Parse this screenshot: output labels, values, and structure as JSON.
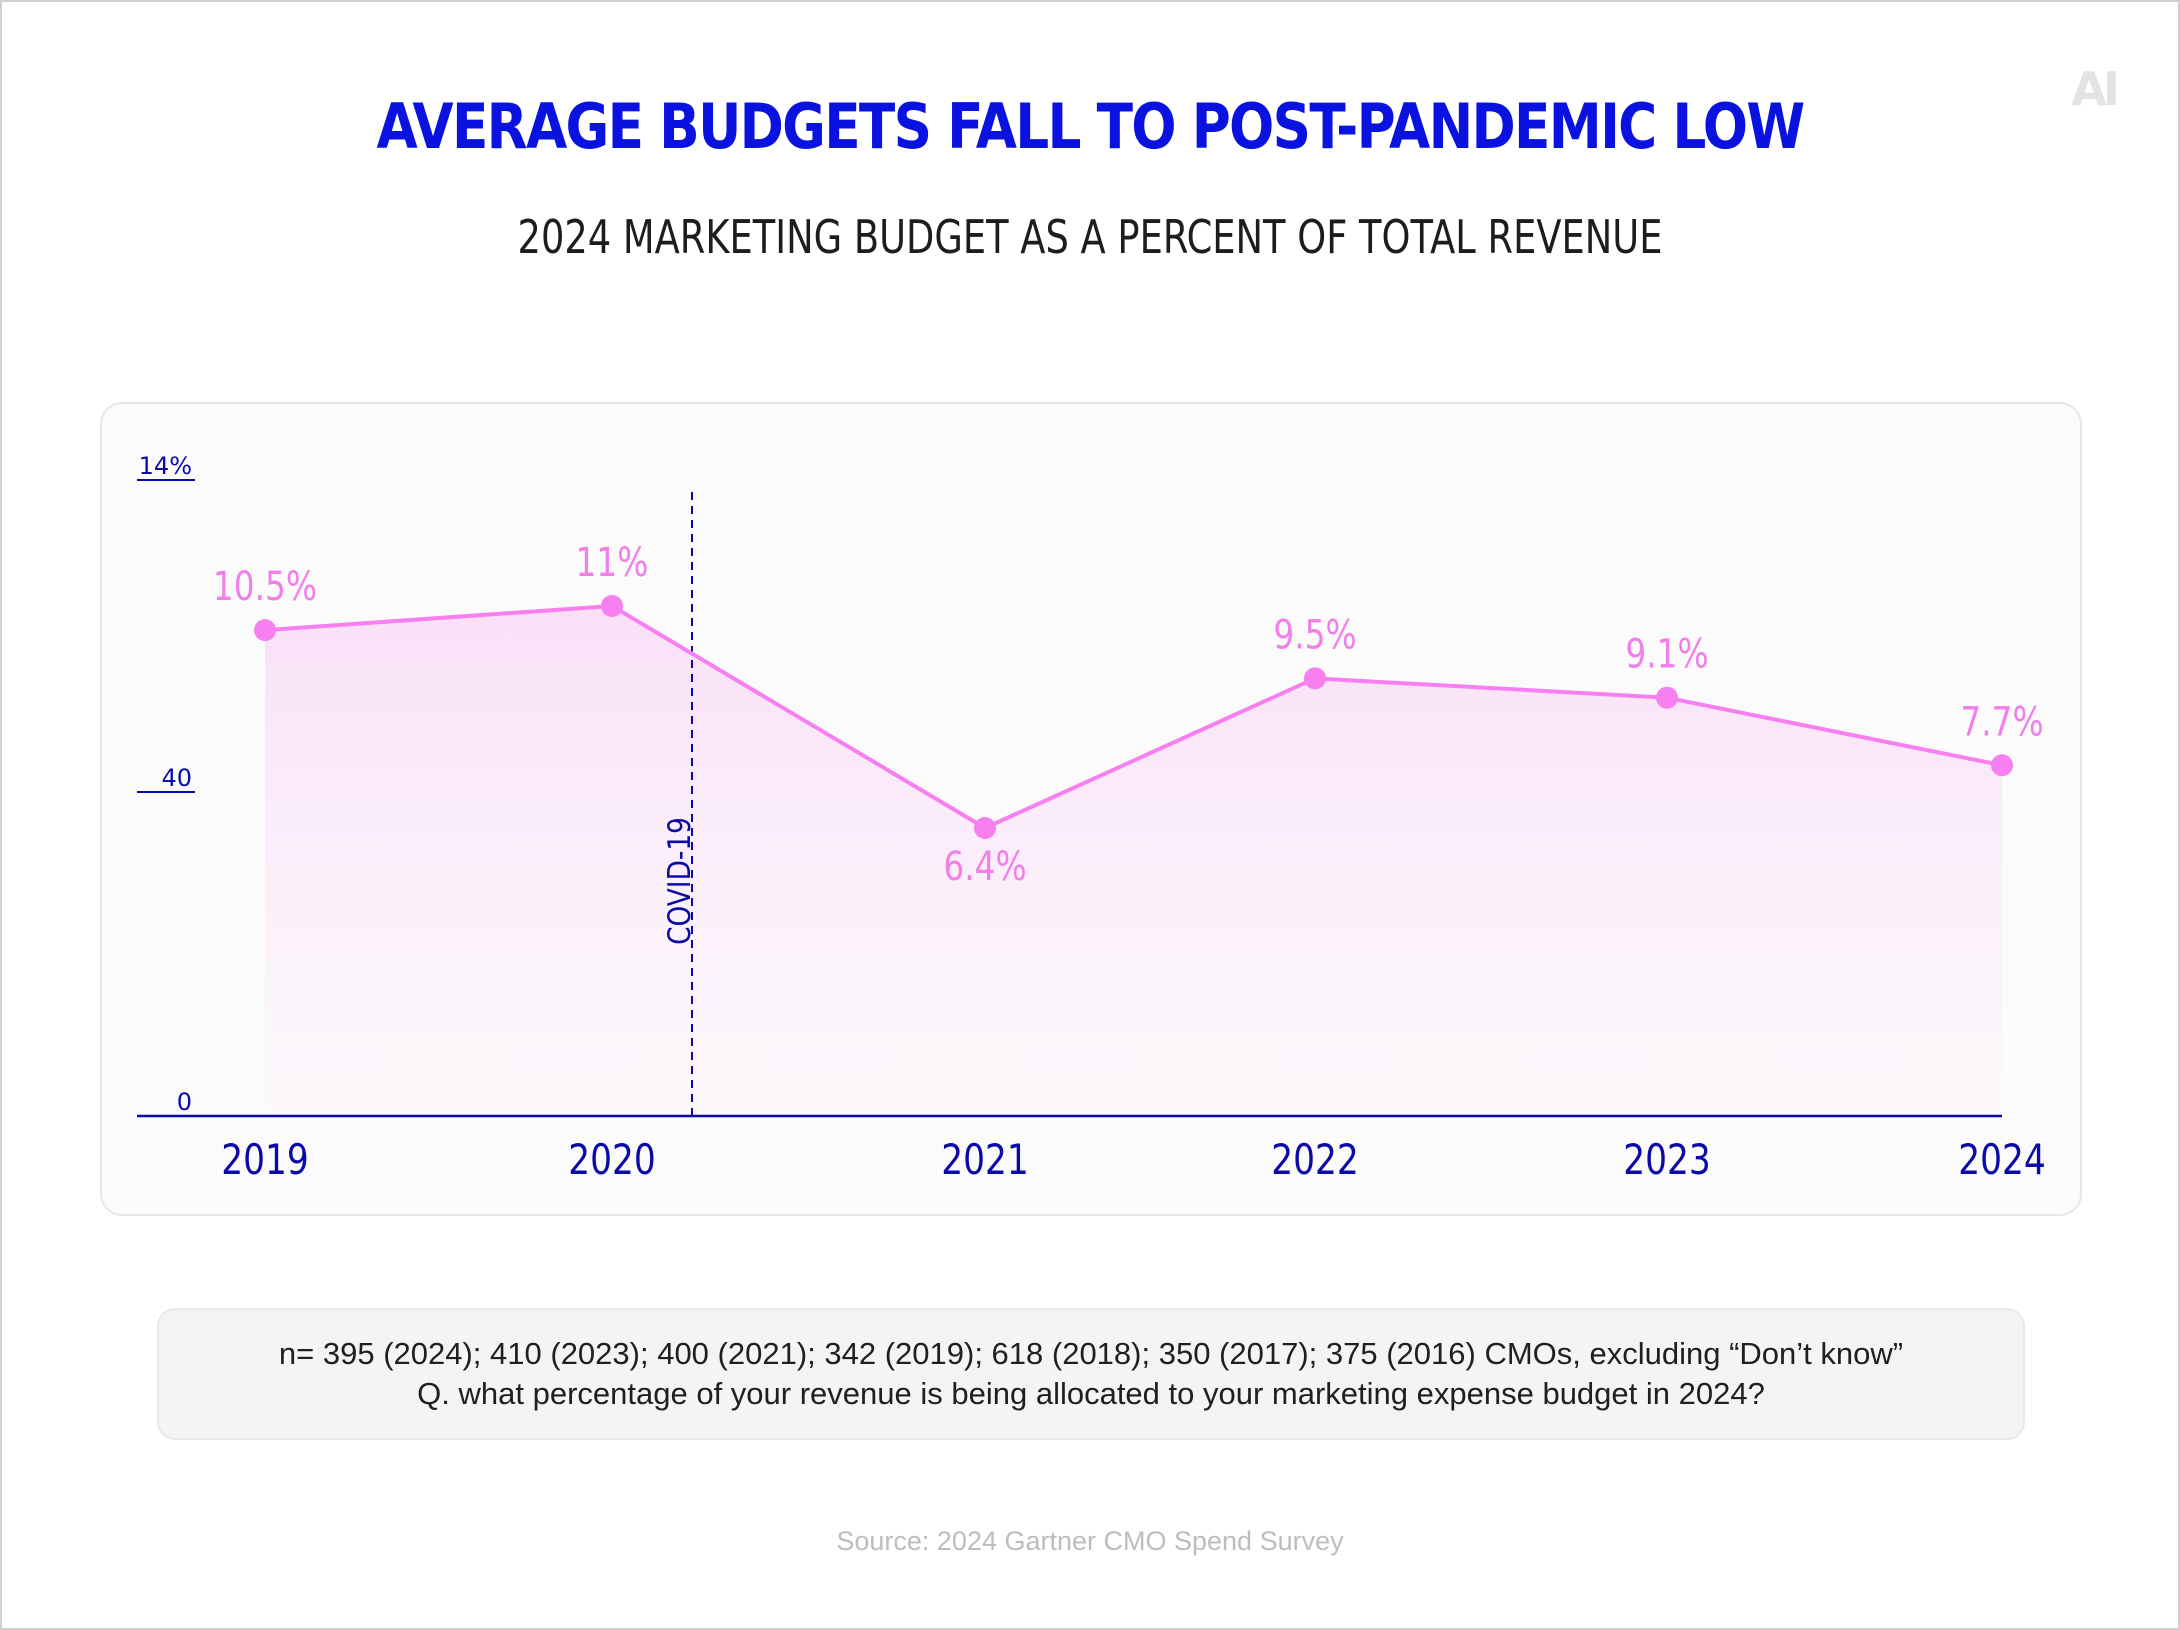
{
  "logo": {
    "text": "AI"
  },
  "title": "AVERAGE BUDGETS FALL TO POST-PANDEMIC LOW",
  "subtitle": "2024 MARKETING BUDGET AS A PERCENT OF TOTAL REVENUE",
  "chart_data": {
    "type": "area",
    "title": "2024 MARKETING BUDGET AS A PERCENT OF TOTAL REVENUE",
    "x": [
      "2019",
      "2020",
      "2021",
      "2022",
      "2023",
      "2024"
    ],
    "series": [
      {
        "values": [
          10.5,
          11,
          6.4,
          9.5,
          9.1,
          7.7
        ],
        "labels": [
          "10.5%",
          "11%",
          "6.4%",
          "9.5%",
          "9.1%",
          "7.7%"
        ],
        "color": "#f77ff0"
      }
    ],
    "y_ticks": [
      "14%",
      "40",
      "0"
    ],
    "ylim": [
      0,
      14
    ],
    "grid": false,
    "annotations": [
      {
        "text": "COVID-19",
        "type": "vertical-dashed-line",
        "between": [
          "2020",
          "2021"
        ]
      }
    ],
    "colors": {
      "axis": "#0a0aa8",
      "line": "#f77ff0",
      "label": "#f27fe9",
      "annotation": "#0a0aa8"
    }
  },
  "notes": {
    "line1": "n= 395 (2024); 410 (2023); 400 (2021); 342 (2019); 618 (2018); 350 (2017); 375 (2016) CMOs, excluding “Don’t know”",
    "line2": "Q. what percentage of your revenue is being allocated to your marketing expense budget in 2024?"
  },
  "source": "Source: 2024 Gartner CMO Spend Survey"
}
